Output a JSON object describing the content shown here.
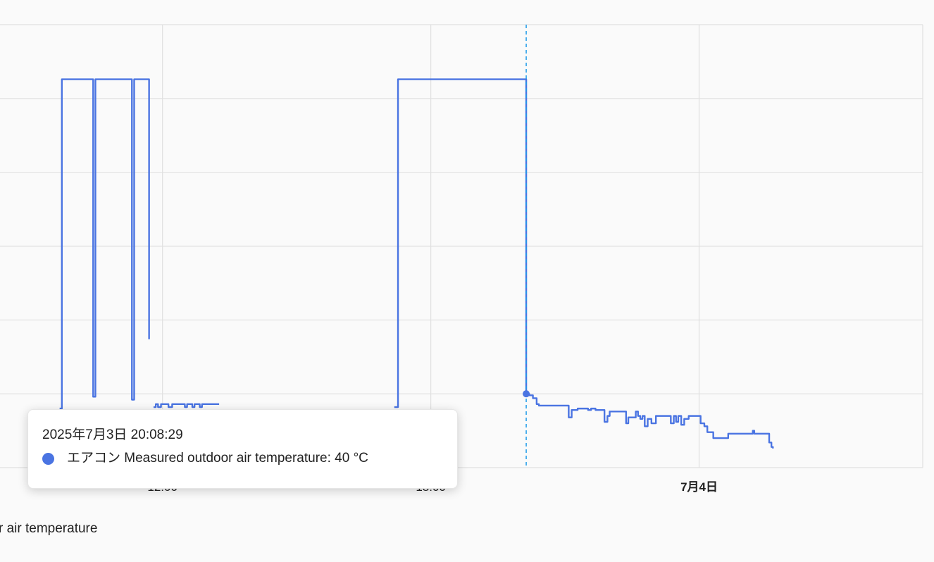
{
  "chart_data": {
    "type": "line",
    "step": true,
    "xlim": [
      "2025-07-03 08:22",
      "2025-07-04 05:00"
    ],
    "ylim": [
      35,
      65
    ],
    "y_gridlines": [
      35,
      40,
      45,
      50,
      55,
      60,
      65
    ],
    "grid": true,
    "x_ticks": [
      {
        "t": "2025-07-03 12:00",
        "label": "12:00",
        "bold": false
      },
      {
        "t": "2025-07-03 18:00",
        "label": "18:00",
        "bold": false
      },
      {
        "t": "2025-07-04 00:00",
        "label": "7月4日",
        "bold": true
      }
    ],
    "series": [
      {
        "color": "#4a74e2",
        "segments": [
          [
            [
              "2025-07-03 09:42",
              39.0
            ],
            [
              "2025-07-03 09:45",
              61.3
            ],
            [
              "2025-07-03 10:25",
              61.3
            ],
            [
              "2025-07-03 10:27",
              39.8
            ],
            [
              "2025-07-03 10:30",
              61.3
            ],
            [
              "2025-07-03 11:17",
              61.3
            ],
            [
              "2025-07-03 11:19",
              39.6
            ],
            [
              "2025-07-03 11:22",
              61.3
            ],
            [
              "2025-07-03 11:42",
              61.3
            ],
            [
              "2025-07-03 11:42",
              43.7
            ]
          ],
          [
            [
              "2025-07-03 11:48",
              39.1
            ],
            [
              "2025-07-03 11:51",
              39.3
            ],
            [
              "2025-07-03 11:54",
              39.1
            ],
            [
              "2025-07-03 11:58",
              39.3
            ],
            [
              "2025-07-03 12:08",
              39.1
            ],
            [
              "2025-07-03 12:13",
              39.3
            ],
            [
              "2025-07-03 12:30",
              39.1
            ],
            [
              "2025-07-03 12:33",
              39.3
            ],
            [
              "2025-07-03 12:40",
              39.1
            ],
            [
              "2025-07-03 12:43",
              39.3
            ],
            [
              "2025-07-03 12:50",
              39.1
            ],
            [
              "2025-07-03 12:53",
              39.3
            ],
            [
              "2025-07-03 13:16",
              39.3
            ]
          ],
          [
            [
              "2025-07-03 17:11",
              39.1
            ],
            [
              "2025-07-03 17:16",
              61.3
            ],
            [
              "2025-07-03 20:08",
              40.0
            ],
            [
              "2025-07-03 20:12",
              39.9
            ],
            [
              "2025-07-03 20:17",
              39.7
            ],
            [
              "2025-07-03 20:22",
              39.3
            ],
            [
              "2025-07-03 20:25",
              39.2
            ],
            [
              "2025-07-03 21:02",
              39.2
            ],
            [
              "2025-07-03 21:05",
              38.4
            ],
            [
              "2025-07-03 21:09",
              38.9
            ],
            [
              "2025-07-03 21:17",
              39.0
            ],
            [
              "2025-07-03 21:26",
              39.0
            ],
            [
              "2025-07-03 21:31",
              38.9
            ],
            [
              "2025-07-03 21:35",
              39.0
            ],
            [
              "2025-07-03 21:41",
              38.9
            ],
            [
              "2025-07-03 21:52",
              38.9
            ],
            [
              "2025-07-03 21:53",
              38.1
            ],
            [
              "2025-07-03 21:57",
              38.5
            ],
            [
              "2025-07-03 22:00",
              38.8
            ],
            [
              "2025-07-03 22:18",
              38.8
            ],
            [
              "2025-07-03 22:22",
              38.0
            ],
            [
              "2025-07-03 22:25",
              38.4
            ],
            [
              "2025-07-03 22:35",
              38.8
            ],
            [
              "2025-07-03 22:38",
              38.5
            ],
            [
              "2025-07-03 22:41",
              38.3
            ],
            [
              "2025-07-03 22:44",
              38.5
            ],
            [
              "2025-07-03 22:47",
              37.8
            ],
            [
              "2025-07-03 22:51",
              38.3
            ],
            [
              "2025-07-03 22:56",
              38.0
            ],
            [
              "2025-07-03 23:02",
              38.5
            ],
            [
              "2025-07-03 23:17",
              38.5
            ],
            [
              "2025-07-03 23:22",
              38.0
            ],
            [
              "2025-07-03 23:26",
              38.5
            ],
            [
              "2025-07-03 23:29",
              38.1
            ],
            [
              "2025-07-03 23:32",
              38.5
            ],
            [
              "2025-07-03 23:36",
              37.9
            ],
            [
              "2025-07-03 23:40",
              38.3
            ],
            [
              "2025-07-03 23:46",
              38.5
            ],
            [
              "2025-07-03 23:57",
              38.5
            ],
            [
              "2025-07-04 00:02",
              38.0
            ],
            [
              "2025-07-04 00:07",
              37.8
            ],
            [
              "2025-07-04 00:11",
              37.4
            ],
            [
              "2025-07-04 00:19",
              37.0
            ],
            [
              "2025-07-04 00:37",
              37.0
            ],
            [
              "2025-07-04 00:39",
              37.3
            ],
            [
              "2025-07-04 01:11",
              37.3
            ],
            [
              "2025-07-04 01:12",
              37.5
            ],
            [
              "2025-07-04 01:14",
              37.3
            ],
            [
              "2025-07-04 01:30",
              37.3
            ],
            [
              "2025-07-04 01:34",
              36.7
            ],
            [
              "2025-07-04 01:37",
              36.4
            ],
            [
              "2025-07-04 01:39",
              36.3
            ]
          ]
        ]
      }
    ],
    "hover": {
      "t": "2025-07-03 20:08",
      "value": 40,
      "line_color": "#1e9be9"
    }
  },
  "tooltip": {
    "time": "2025年7月3日 20:08:29",
    "label": "エアコン Measured outdoor air temperature: 40 °C",
    "dot_color": "#4a74e2"
  },
  "legend": {
    "text": "r air temperature"
  }
}
